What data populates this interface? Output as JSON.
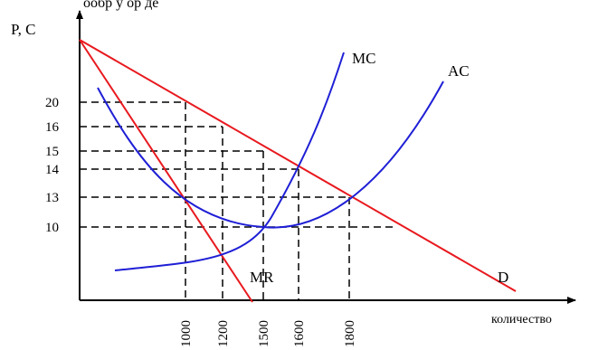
{
  "header": {
    "text": "ообр    у  ор  де   "
  },
  "axes": {
    "y_label": "P, C",
    "x_label": "количество",
    "y_ticks": [
      "20",
      "16",
      "15",
      "14",
      "13",
      "10"
    ],
    "x_ticks": [
      "1000",
      "1200",
      "1500",
      "1600",
      "1800"
    ]
  },
  "curves": {
    "mc_label": "MC",
    "ac_label": "AC",
    "mr_label": "MR",
    "d_label": "D"
  },
  "colors": {
    "cost_curves": "#1f1fd6",
    "revenue_curves": "#e8191e",
    "axes": "#000000"
  }
}
